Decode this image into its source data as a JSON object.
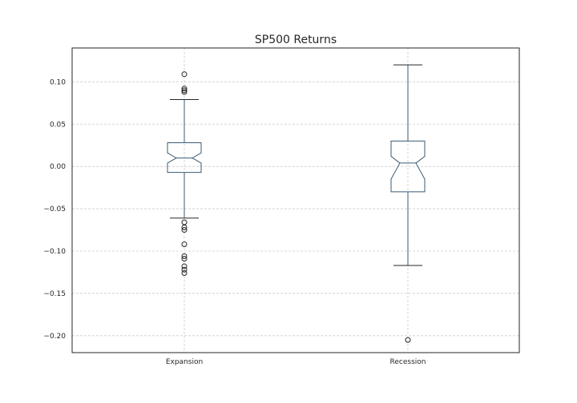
{
  "chart_data": {
    "type": "box",
    "title": "SP500 Returns",
    "xlabel": "",
    "ylabel": "",
    "categories": [
      "Expansion",
      "Recession"
    ],
    "ylim": [
      -0.22,
      0.14
    ],
    "yticks": [
      0.1,
      0.05,
      0.0,
      -0.05,
      -0.1,
      -0.15,
      -0.2
    ],
    "ytick_labels": [
      "0.10",
      "0.05",
      "0.00",
      "−0.05",
      "−0.10",
      "−0.15",
      "−0.20"
    ],
    "grid": true,
    "notched": true,
    "boxes": [
      {
        "category": "Expansion",
        "whisker_low": -0.061,
        "q1": -0.007,
        "median": 0.01,
        "q3": 0.028,
        "whisker_high": 0.079,
        "notch_low": 0.004,
        "notch_high": 0.016,
        "outliers": [
          0.109,
          0.092,
          0.09,
          0.088,
          -0.066,
          -0.072,
          -0.075,
          -0.092,
          -0.106,
          -0.109,
          -0.118,
          -0.122,
          -0.126
        ]
      },
      {
        "category": "Recession",
        "whisker_low": -0.117,
        "q1": -0.03,
        "median": 0.004,
        "q3": 0.03,
        "whisker_high": 0.12,
        "notch_low": -0.015,
        "notch_high": 0.012,
        "outliers": [
          -0.205
        ]
      }
    ],
    "colors": {
      "box": "#3b5b73",
      "whisker": "#3b5b73",
      "cap": "#262626",
      "outlier": "#262626",
      "frame": "#262626"
    }
  }
}
